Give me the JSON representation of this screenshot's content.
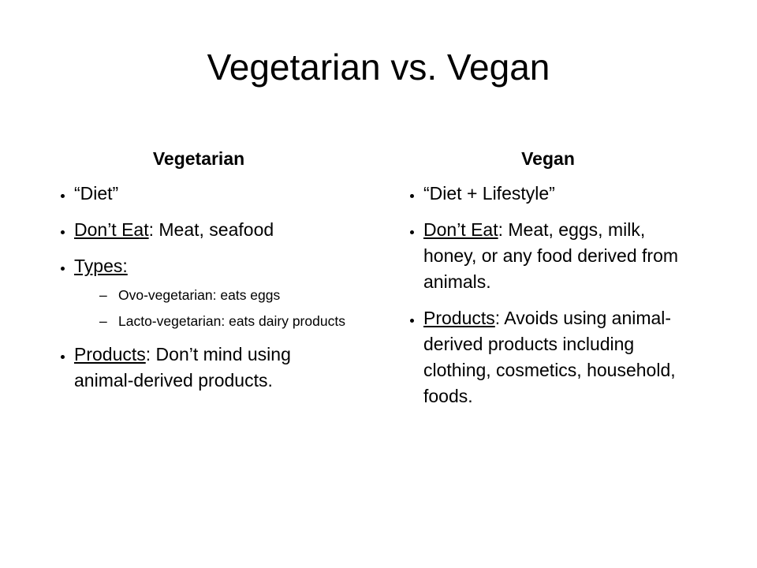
{
  "title": "Vegetarian vs. Vegan",
  "columns": [
    {
      "heading": "Vegetarian",
      "items": [
        {
          "text": "“Diet”"
        },
        {
          "label": "Don’t Eat",
          "text": ": Meat, seafood"
        },
        {
          "label": "Types:",
          "subitems": [
            "Ovo-vegetarian: eats eggs",
            "Lacto-vegetarian: eats dairy products"
          ]
        },
        {
          "label": "Products",
          "text": ": Don’t mind using animal-derived products."
        }
      ]
    },
    {
      "heading": "Vegan",
      "items": [
        {
          "text": "“Diet + Lifestyle”"
        },
        {
          "label": "Don’t Eat",
          "text": ": Meat, eggs, milk, honey, or any food derived from animals."
        },
        {
          "label": "Products",
          "text": ": Avoids using animal-derived products including clothing, cosmetics, household, foods."
        }
      ]
    }
  ]
}
